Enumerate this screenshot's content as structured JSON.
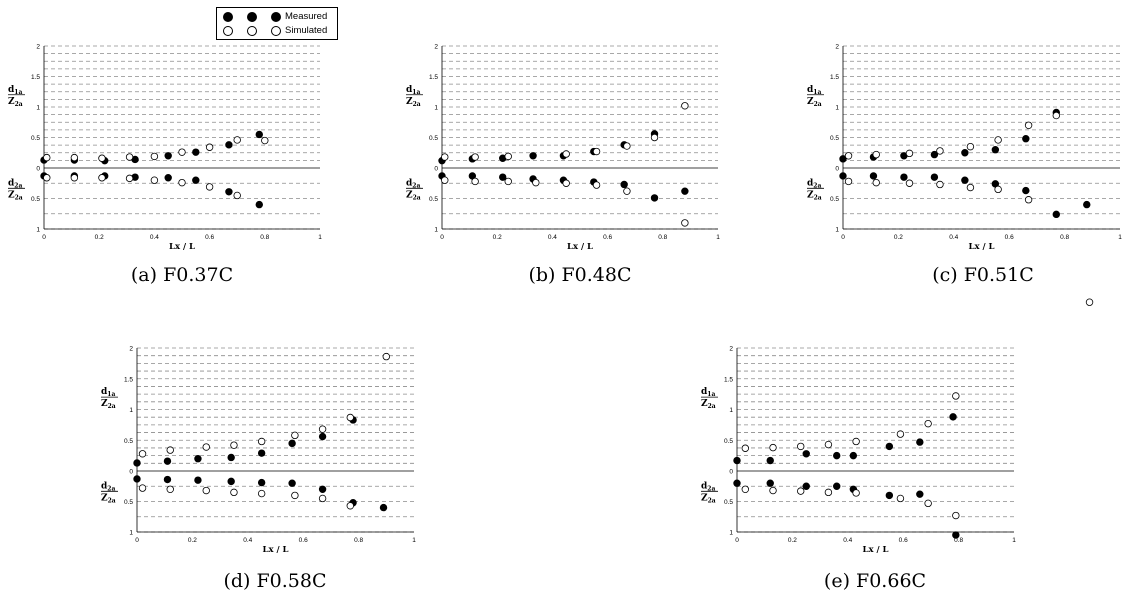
{
  "legend": {
    "measured_label": "Measured",
    "simulated_label": "Simulated"
  },
  "captions": [
    "(a)  F0.37C",
    "(b)  F0.48C",
    "(c)  F0.51C",
    "(d)  F0.58C",
    "(e)  F0.66C"
  ],
  "colors": {
    "grid": "#8c8c8c",
    "axis": "#000000",
    "measured_fill": "#000000",
    "simulated_fill": "#ffffff"
  },
  "chart_data": [
    {
      "type": "scatter",
      "title": "(a)  F0.37C",
      "xlabel": "Lx / L",
      "ylabel_upper": "d1a / Z2a",
      "ylabel_lower": "d2a / Z2a",
      "xlim": [
        0,
        1
      ],
      "ylim_upper": [
        0,
        2
      ],
      "ylim_lower": [
        0,
        1
      ],
      "x_ticks": [
        "0",
        "0.2",
        "0.4",
        "0.6",
        "0.8",
        "1"
      ],
      "y_ticks_upper": [
        "2",
        "1.5",
        "1",
        "0.5",
        "0"
      ],
      "y_ticks_lower": [
        "0.5",
        "1"
      ],
      "grid": true,
      "series": [
        {
          "name": "Measured",
          "upper": [
            [
              0.0,
              0.13
            ],
            [
              0.11,
              0.13
            ],
            [
              0.22,
              0.12
            ],
            [
              0.33,
              0.14
            ],
            [
              0.45,
              0.2
            ],
            [
              0.55,
              0.26
            ],
            [
              0.67,
              0.38
            ],
            [
              0.78,
              0.55
            ]
          ],
          "lower": [
            [
              0.0,
              0.13
            ],
            [
              0.11,
              0.13
            ],
            [
              0.22,
              0.13
            ],
            [
              0.33,
              0.15
            ],
            [
              0.45,
              0.16
            ],
            [
              0.55,
              0.2
            ],
            [
              0.67,
              0.39
            ],
            [
              0.78,
              0.6
            ]
          ]
        },
        {
          "name": "Simulated",
          "upper": [
            [
              0.01,
              0.17
            ],
            [
              0.11,
              0.17
            ],
            [
              0.21,
              0.16
            ],
            [
              0.31,
              0.18
            ],
            [
              0.4,
              0.19
            ],
            [
              0.5,
              0.26
            ],
            [
              0.6,
              0.34
            ],
            [
              0.7,
              0.46
            ],
            [
              0.8,
              0.45
            ]
          ],
          "lower": [
            [
              0.01,
              0.16
            ],
            [
              0.11,
              0.16
            ],
            [
              0.21,
              0.16
            ],
            [
              0.31,
              0.17
            ],
            [
              0.4,
              0.2
            ],
            [
              0.5,
              0.24
            ],
            [
              0.6,
              0.31
            ],
            [
              0.7,
              0.45
            ]
          ]
        }
      ]
    },
    {
      "type": "scatter",
      "title": "(b)  F0.48C",
      "xlabel": "Lx / L",
      "ylabel_upper": "d1a / Z2a",
      "ylabel_lower": "d2a / Z2a",
      "xlim": [
        0,
        1
      ],
      "ylim_upper": [
        0,
        2
      ],
      "ylim_lower": [
        0,
        1
      ],
      "x_ticks": [
        "0",
        "0.2",
        "0.4",
        "0.6",
        "0.8",
        "1"
      ],
      "y_ticks_upper": [
        "2",
        "1.5",
        "1",
        "0.5",
        "0"
      ],
      "y_ticks_lower": [
        "0.5",
        "1"
      ],
      "grid": true,
      "series": [
        {
          "name": "Measured",
          "upper": [
            [
              0.0,
              0.12
            ],
            [
              0.11,
              0.15
            ],
            [
              0.22,
              0.16
            ],
            [
              0.33,
              0.2
            ],
            [
              0.44,
              0.2
            ],
            [
              0.55,
              0.27
            ],
            [
              0.66,
              0.38
            ],
            [
              0.77,
              0.56
            ]
          ],
          "lower": [
            [
              0.0,
              0.13
            ],
            [
              0.11,
              0.13
            ],
            [
              0.22,
              0.15
            ],
            [
              0.33,
              0.18
            ],
            [
              0.44,
              0.2
            ],
            [
              0.55,
              0.23
            ],
            [
              0.66,
              0.27
            ],
            [
              0.77,
              0.49
            ],
            [
              0.88,
              0.38
            ]
          ]
        },
        {
          "name": "Simulated",
          "upper": [
            [
              0.01,
              0.18
            ],
            [
              0.12,
              0.18
            ],
            [
              0.24,
              0.19
            ],
            [
              0.45,
              0.23
            ],
            [
              0.56,
              0.27
            ],
            [
              0.67,
              0.36
            ],
            [
              0.77,
              0.5
            ],
            [
              0.88,
              1.02
            ]
          ],
          "lower": [
            [
              0.01,
              0.2
            ],
            [
              0.12,
              0.22
            ],
            [
              0.24,
              0.22
            ],
            [
              0.34,
              0.24
            ],
            [
              0.45,
              0.25
            ],
            [
              0.56,
              0.28
            ],
            [
              0.67,
              0.38
            ],
            [
              0.88,
              0.9
            ]
          ]
        }
      ]
    },
    {
      "type": "scatter",
      "title": "(c)  F0.51C",
      "xlabel": "Lx / L",
      "ylabel_upper": "d1a / Z2a",
      "ylabel_lower": "d2a / Z2a",
      "xlim": [
        0,
        1
      ],
      "ylim_upper": [
        0,
        2
      ],
      "ylim_lower": [
        0,
        1
      ],
      "x_ticks": [
        "0",
        "0.2",
        "0.4",
        "0.6",
        "0.8",
        "1"
      ],
      "y_ticks_upper": [
        "2",
        "1.5",
        "1",
        "0.5",
        "0"
      ],
      "y_ticks_lower": [
        "0.5",
        "1"
      ],
      "grid": true,
      "series": [
        {
          "name": "Measured",
          "upper": [
            [
              0.0,
              0.15
            ],
            [
              0.11,
              0.18
            ],
            [
              0.22,
              0.2
            ],
            [
              0.33,
              0.22
            ],
            [
              0.44,
              0.25
            ],
            [
              0.55,
              0.3
            ],
            [
              0.66,
              0.48
            ],
            [
              0.77,
              0.91
            ]
          ],
          "lower": [
            [
              0.0,
              0.13
            ],
            [
              0.11,
              0.13
            ],
            [
              0.22,
              0.15
            ],
            [
              0.33,
              0.15
            ],
            [
              0.44,
              0.2
            ],
            [
              0.55,
              0.26
            ],
            [
              0.66,
              0.37
            ],
            [
              0.77,
              0.76
            ],
            [
              0.88,
              0.6
            ]
          ]
        },
        {
          "name": "Simulated",
          "upper": [
            [
              0.02,
              0.2
            ],
            [
              0.12,
              0.22
            ],
            [
              0.24,
              0.24
            ],
            [
              0.35,
              0.28
            ],
            [
              0.46,
              0.35
            ],
            [
              0.56,
              0.46
            ],
            [
              0.67,
              0.7
            ],
            [
              0.77,
              0.86
            ]
          ],
          "lower": [
            [
              0.02,
              0.22
            ],
            [
              0.12,
              0.24
            ],
            [
              0.24,
              0.25
            ],
            [
              0.35,
              0.27
            ],
            [
              0.46,
              0.32
            ],
            [
              0.56,
              0.35
            ],
            [
              0.67,
              0.52
            ],
            [
              0.89,
              2.2
            ]
          ]
        }
      ]
    },
    {
      "type": "scatter",
      "title": "(d)  F0.58C",
      "xlabel": "Lx / L",
      "ylabel_upper": "d1a / Z2a",
      "ylabel_lower": "d2a / Z2a",
      "xlim": [
        0,
        1
      ],
      "ylim_upper": [
        0,
        2
      ],
      "ylim_lower": [
        0,
        1
      ],
      "x_ticks": [
        "0",
        "0.2",
        "0.4",
        "0.6",
        "0.8",
        "1"
      ],
      "y_ticks_upper": [
        "2",
        "1.5",
        "1",
        "0.5",
        "0"
      ],
      "y_ticks_lower": [
        "0.5",
        "1"
      ],
      "grid": true,
      "series": [
        {
          "name": "Measured",
          "upper": [
            [
              0.0,
              0.13
            ],
            [
              0.11,
              0.16
            ],
            [
              0.22,
              0.2
            ],
            [
              0.34,
              0.22
            ],
            [
              0.45,
              0.29
            ],
            [
              0.56,
              0.45
            ],
            [
              0.67,
              0.56
            ],
            [
              0.78,
              0.83
            ]
          ],
          "lower": [
            [
              0.0,
              0.13
            ],
            [
              0.11,
              0.14
            ],
            [
              0.22,
              0.15
            ],
            [
              0.34,
              0.17
            ],
            [
              0.45,
              0.19
            ],
            [
              0.56,
              0.2
            ],
            [
              0.67,
              0.3
            ],
            [
              0.78,
              0.52
            ],
            [
              0.89,
              0.6
            ]
          ]
        },
        {
          "name": "Simulated",
          "upper": [
            [
              0.02,
              0.28
            ],
            [
              0.12,
              0.34
            ],
            [
              0.25,
              0.39
            ],
            [
              0.35,
              0.42
            ],
            [
              0.45,
              0.48
            ],
            [
              0.57,
              0.58
            ],
            [
              0.67,
              0.68
            ],
            [
              0.77,
              0.87
            ],
            [
              0.9,
              1.86
            ]
          ],
          "lower": [
            [
              0.02,
              0.28
            ],
            [
              0.12,
              0.3
            ],
            [
              0.25,
              0.32
            ],
            [
              0.35,
              0.35
            ],
            [
              0.45,
              0.37
            ],
            [
              0.57,
              0.4
            ],
            [
              0.67,
              0.45
            ],
            [
              0.77,
              0.57
            ]
          ]
        }
      ]
    },
    {
      "type": "scatter",
      "title": "(e)  F0.66C",
      "xlabel": "Lx / L",
      "ylabel_upper": "d1a / Z2a",
      "ylabel_lower": "d2a / Z2a",
      "xlim": [
        0,
        1
      ],
      "ylim_upper": [
        0,
        2
      ],
      "ylim_lower": [
        0,
        1
      ],
      "x_ticks": [
        "0",
        "0.2",
        "0.4",
        "0.6",
        "0.8",
        "1"
      ],
      "y_ticks_upper": [
        "2",
        "1.5",
        "1",
        "0.5",
        "0"
      ],
      "y_ticks_lower": [
        "0.5",
        "1"
      ],
      "grid": true,
      "series": [
        {
          "name": "Measured",
          "upper": [
            [
              0.0,
              0.17
            ],
            [
              0.12,
              0.17
            ],
            [
              0.25,
              0.28
            ],
            [
              0.36,
              0.25
            ],
            [
              0.42,
              0.25
            ],
            [
              0.55,
              0.4
            ],
            [
              0.66,
              0.47
            ],
            [
              0.78,
              0.88
            ]
          ],
          "lower": [
            [
              0.0,
              0.2
            ],
            [
              0.12,
              0.2
            ],
            [
              0.25,
              0.25
            ],
            [
              0.36,
              0.25
            ],
            [
              0.42,
              0.3
            ],
            [
              0.55,
              0.4
            ],
            [
              0.66,
              0.38
            ],
            [
              0.79,
              1.05
            ]
          ]
        },
        {
          "name": "Simulated",
          "upper": [
            [
              0.03,
              0.37
            ],
            [
              0.13,
              0.38
            ],
            [
              0.23,
              0.4
            ],
            [
              0.33,
              0.43
            ],
            [
              0.43,
              0.48
            ],
            [
              0.59,
              0.6
            ],
            [
              0.69,
              0.77
            ],
            [
              0.79,
              1.22
            ]
          ],
          "lower": [
            [
              0.03,
              0.3
            ],
            [
              0.13,
              0.32
            ],
            [
              0.23,
              0.33
            ],
            [
              0.33,
              0.35
            ],
            [
              0.43,
              0.36
            ],
            [
              0.59,
              0.45
            ],
            [
              0.69,
              0.53
            ],
            [
              0.79,
              0.73
            ]
          ]
        }
      ]
    }
  ]
}
